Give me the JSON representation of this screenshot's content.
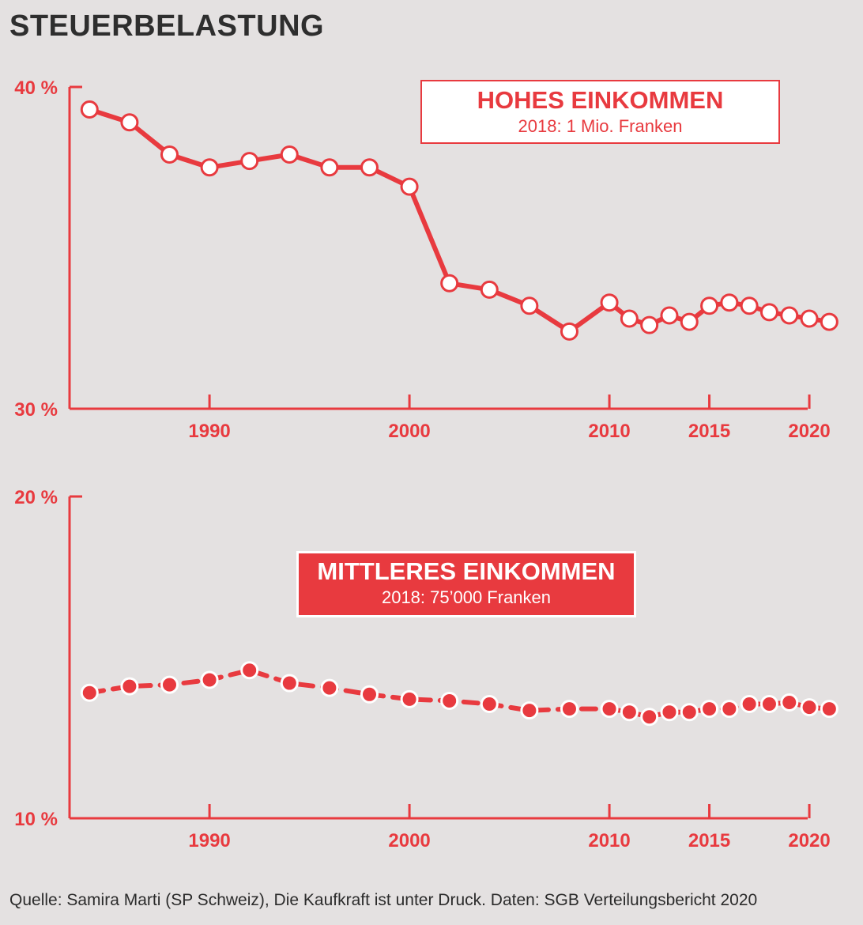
{
  "title": "STEUERBELASTUNG",
  "source": "Quelle: Samira Marti (SP Schweiz), Die Kaufkraft ist unter Druck. Daten: SGB Verteilungsbericht 2020",
  "colors": {
    "accent": "#e83a3f",
    "background": "#e4e1e1",
    "title": "#2e2e2e"
  },
  "chart_data": [
    {
      "type": "line",
      "title": "HOHES EINKOMMEN",
      "subtitle": "2018: 1 Mio. Franken",
      "legend_style": "white",
      "ylim": [
        30,
        40
      ],
      "yticks": [
        30,
        40
      ],
      "ytick_labels": [
        "30 %",
        "40 %"
      ],
      "xlim": [
        1983,
        2021.5
      ],
      "xticks": [
        1990,
        2000,
        2010,
        2015,
        2020
      ],
      "xtick_labels": [
        "1990",
        "2000",
        "2010",
        "2015",
        "2020"
      ],
      "marker": "open",
      "x": [
        1984,
        1986,
        1988,
        1990,
        1992,
        1994,
        1996,
        1998,
        2000,
        2002,
        2004,
        2006,
        2008,
        2010,
        2011,
        2012,
        2013,
        2014,
        2015,
        2016,
        2017,
        2018,
        2019,
        2020,
        2021
      ],
      "values": [
        39.3,
        38.9,
        37.9,
        37.5,
        37.7,
        37.9,
        37.5,
        37.5,
        36.9,
        33.9,
        33.7,
        33.2,
        32.4,
        33.3,
        32.8,
        32.6,
        32.9,
        32.7,
        33.2,
        33.3,
        33.2,
        33.0,
        32.9,
        32.8,
        32.7
      ]
    },
    {
      "type": "line",
      "title": "MITTLERES EINKOMMEN",
      "subtitle": "2018: 75’000 Franken",
      "legend_style": "filled",
      "ylim": [
        10,
        20
      ],
      "yticks": [
        10,
        20
      ],
      "ytick_labels": [
        "10 %",
        "20 %"
      ],
      "xlim": [
        1983,
        2021.5
      ],
      "xticks": [
        1990,
        2000,
        2010,
        2015,
        2020
      ],
      "xtick_labels": [
        "1990",
        "2000",
        "2010",
        "2015",
        "2020"
      ],
      "marker": "filled",
      "x": [
        1984,
        1986,
        1988,
        1990,
        1992,
        1994,
        1996,
        1998,
        2000,
        2002,
        2004,
        2006,
        2008,
        2010,
        2011,
        2012,
        2013,
        2014,
        2015,
        2016,
        2017,
        2018,
        2019,
        2020,
        2021
      ],
      "values": [
        13.9,
        14.1,
        14.15,
        14.3,
        14.6,
        14.2,
        14.05,
        13.85,
        13.7,
        13.65,
        13.55,
        13.35,
        13.4,
        13.4,
        13.3,
        13.15,
        13.3,
        13.3,
        13.4,
        13.4,
        13.55,
        13.55,
        13.6,
        13.45,
        13.4
      ]
    }
  ]
}
